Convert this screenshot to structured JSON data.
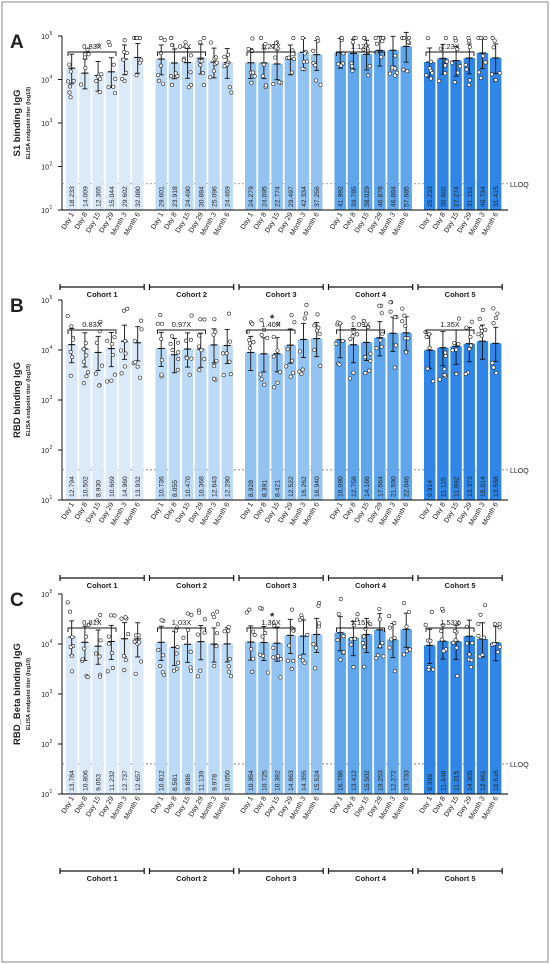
{
  "colors": {
    "cohort_fills": [
      "#dbeafb",
      "#bcd9f6",
      "#93c3f0",
      "#5fa6ec",
      "#2f86e6"
    ],
    "frame": "#8a8a8a",
    "text": "#222222"
  },
  "chart_data": [
    {
      "panel_letter": "A",
      "type": "bar",
      "ylabel": "S1 binding IgG",
      "ylabel_sub": "ELISA endpoint titer (log10)",
      "yscale": "log",
      "ylim": [
        10,
        100000
      ],
      "yticks": [
        "10",
        "10",
        "10",
        "10",
        "10"
      ],
      "ytick_exps": [
        "1",
        "2",
        "3",
        "4",
        "5"
      ],
      "lloq": 40,
      "lloq_label": "LLOQ",
      "categories": [
        "Day 1",
        "Day 8",
        "Day 15",
        "Day 29",
        "Month 3",
        "Month 6"
      ],
      "series": [
        {
          "name": "Cohort 1",
          "values": [
            18233,
            14009,
            12365,
            15044,
            29602,
            32080
          ],
          "ratio_label": "0.83X"
        },
        {
          "name": "Cohort 2",
          "values": [
            29601,
            23918,
            24490,
            30884,
            25096,
            24469
          ],
          "ratio_label": "1.04X"
        },
        {
          "name": "Cohort 3",
          "values": [
            24279,
            24095,
            22774,
            29497,
            42334,
            37256
          ],
          "ratio_label": "1.21X"
        },
        {
          "name": "Cohort 4",
          "values": [
            41992,
            39785,
            38029,
            46878,
            46884,
            57685
          ],
          "ratio_label": "1.12X"
        },
        {
          "name": "Cohort 5",
          "values": [
            25233,
            30602,
            27274,
            31151,
            40734,
            31415
          ],
          "ratio_label": "1.23X"
        }
      ],
      "significance": []
    },
    {
      "panel_letter": "B",
      "type": "bar",
      "ylabel": "RBD binding IgG",
      "ylabel_sub": "ELISA endpoint titer (log10)",
      "yscale": "log",
      "ylim": [
        10,
        100000
      ],
      "yticks": [
        "10",
        "10",
        "10",
        "10",
        "10"
      ],
      "ytick_exps": [
        "1",
        "2",
        "3",
        "4",
        "5"
      ],
      "lloq": 40,
      "lloq_label": "LLOQ",
      "categories": [
        "Day 1",
        "Day 8",
        "Day 15",
        "Day 29",
        "Month 3",
        "Month 6"
      ],
      "series": [
        {
          "name": "Cohort 1",
          "values": [
            12794,
            10502,
            8930,
            10669,
            14960,
            13932
          ],
          "ratio_label": "0.83X"
        },
        {
          "name": "Cohort 2",
          "values": [
            10736,
            8055,
            10470,
            10368,
            12643,
            12290
          ],
          "ratio_label": "0.97X"
        },
        {
          "name": "Cohort 3",
          "values": [
            8928,
            8391,
            8421,
            12522,
            16262,
            16940
          ],
          "ratio_label": "1.40X"
        },
        {
          "name": "Cohort 4",
          "values": [
            16090,
            12758,
            14166,
            17564,
            21590,
            22046
          ],
          "ratio_label": "1.09X"
        },
        {
          "name": "Cohort 5",
          "values": [
            9914,
            11115,
            11892,
            13373,
            15014,
            13588
          ],
          "ratio_label": "1.35X"
        }
      ],
      "significance": [
        "*"
      ]
    },
    {
      "panel_letter": "C",
      "type": "bar",
      "ylabel": "RBD_Beta binding IgG",
      "ylabel_sub": "ELISA endpoint titer (log10)",
      "yscale": "log",
      "ylim": [
        10,
        100000
      ],
      "yticks": [
        "10",
        "10",
        "10",
        "10",
        "10"
      ],
      "ytick_exps": [
        "1",
        "2",
        "3",
        "4",
        "5"
      ],
      "lloq": 40,
      "lloq_label": "LLOQ",
      "categories": [
        "Day 1",
        "Day 8",
        "Day 15",
        "Day 29",
        "Month 3",
        "Month 6"
      ],
      "series": [
        {
          "name": "Cohort 1",
          "values": [
            13784,
            10806,
            9053,
            11232,
            12737,
            12657
          ],
          "ratio_label": "0.81X"
        },
        {
          "name": "Cohort 2",
          "values": [
            10812,
            8581,
            9886,
            11139,
            9978,
            10050
          ],
          "ratio_label": "1.03X"
        },
        {
          "name": "Cohort 3",
          "values": [
            10954,
            10725,
            10382,
            14863,
            14355,
            15524
          ],
          "ratio_label": "1.36X"
        },
        {
          "name": "Cohort 4",
          "values": [
            16786,
            13412,
            15502,
            19253,
            12272,
            19733
          ],
          "ratio_label": "1.15X"
        },
        {
          "name": "Cohort 5",
          "values": [
            9399,
            11448,
            11315,
            14305,
            12661,
            10616
          ],
          "ratio_label": "1.53X"
        }
      ],
      "significance": [
        "*"
      ]
    }
  ]
}
